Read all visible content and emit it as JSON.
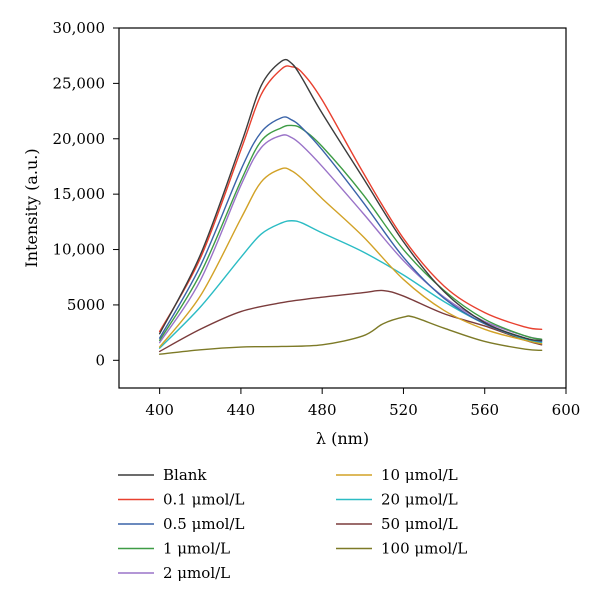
{
  "chart_data": {
    "type": "line",
    "xlabel": "λ (nm)",
    "ylabel": "Intensity (a.u.)",
    "xlim": [
      380,
      600
    ],
    "ylim": [
      -2500,
      30000
    ],
    "xticks": [
      400,
      440,
      480,
      520,
      560,
      600
    ],
    "xtick_labels": [
      "400",
      "440",
      "480",
      "520",
      "560",
      "600"
    ],
    "yticks": [
      0,
      5000,
      10000,
      15000,
      20000,
      25000,
      30000
    ],
    "ytick_labels": [
      "0",
      "5000",
      "10,000",
      "15,000",
      "20,000",
      "25,000",
      "30,000"
    ],
    "grid": false,
    "legend_position": "bottom",
    "series": [
      {
        "name": "Blank",
        "color": "#3c3c3c",
        "points": [
          [
            400,
            2400
          ],
          [
            420,
            9500
          ],
          [
            440,
            19500
          ],
          [
            450,
            24800
          ],
          [
            460,
            27000
          ],
          [
            465,
            26800
          ],
          [
            470,
            25500
          ],
          [
            480,
            22300
          ],
          [
            500,
            16500
          ],
          [
            520,
            10700
          ],
          [
            540,
            6200
          ],
          [
            560,
            3400
          ],
          [
            580,
            2000
          ],
          [
            588,
            1800
          ]
        ]
      },
      {
        "name": "0.1 μmol/L",
        "color": "#e8402f",
        "points": [
          [
            400,
            2600
          ],
          [
            420,
            9200
          ],
          [
            440,
            19000
          ],
          [
            450,
            24000
          ],
          [
            460,
            26300
          ],
          [
            465,
            26500
          ],
          [
            470,
            26000
          ],
          [
            480,
            23500
          ],
          [
            500,
            17000
          ],
          [
            520,
            11000
          ],
          [
            540,
            6700
          ],
          [
            560,
            4300
          ],
          [
            580,
            3000
          ],
          [
            588,
            2800
          ]
        ]
      },
      {
        "name": "0.5 μmol/L",
        "color": "#3a63a8",
        "points": [
          [
            400,
            2000
          ],
          [
            420,
            8500
          ],
          [
            440,
            17200
          ],
          [
            450,
            20600
          ],
          [
            460,
            21900
          ],
          [
            465,
            21700
          ],
          [
            470,
            21000
          ],
          [
            480,
            19000
          ],
          [
            500,
            14300
          ],
          [
            520,
            9300
          ],
          [
            540,
            5600
          ],
          [
            560,
            3300
          ],
          [
            580,
            2000
          ],
          [
            588,
            1700
          ]
        ]
      },
      {
        "name": "1 μmol/L",
        "color": "#3e9c45",
        "points": [
          [
            400,
            1800
          ],
          [
            420,
            7800
          ],
          [
            440,
            16200
          ],
          [
            450,
            19800
          ],
          [
            460,
            21000
          ],
          [
            465,
            21200
          ],
          [
            470,
            20900
          ],
          [
            480,
            19300
          ],
          [
            500,
            15000
          ],
          [
            520,
            10000
          ],
          [
            540,
            6300
          ],
          [
            560,
            3700
          ],
          [
            580,
            2200
          ],
          [
            588,
            1900
          ]
        ]
      },
      {
        "name": "2 μmol/L",
        "color": "#9a73c8",
        "points": [
          [
            400,
            1600
          ],
          [
            420,
            7200
          ],
          [
            440,
            15800
          ],
          [
            450,
            19200
          ],
          [
            460,
            20300
          ],
          [
            465,
            20100
          ],
          [
            470,
            19400
          ],
          [
            480,
            17500
          ],
          [
            500,
            13300
          ],
          [
            520,
            9000
          ],
          [
            540,
            5700
          ],
          [
            560,
            3500
          ],
          [
            580,
            2200
          ],
          [
            588,
            1900
          ]
        ]
      },
      {
        "name": "10 μmol/L",
        "color": "#d2a227",
        "points": [
          [
            400,
            1200
          ],
          [
            420,
            5800
          ],
          [
            440,
            12800
          ],
          [
            450,
            16100
          ],
          [
            460,
            17300
          ],
          [
            465,
            17100
          ],
          [
            470,
            16400
          ],
          [
            480,
            14600
          ],
          [
            500,
            11200
          ],
          [
            520,
            7300
          ],
          [
            540,
            4500
          ],
          [
            560,
            2800
          ],
          [
            580,
            1800
          ],
          [
            588,
            1500
          ]
        ]
      },
      {
        "name": "20 μmol/L",
        "color": "#2bbcc4",
        "points": [
          [
            400,
            1100
          ],
          [
            420,
            4800
          ],
          [
            440,
            9300
          ],
          [
            450,
            11400
          ],
          [
            460,
            12400
          ],
          [
            465,
            12600
          ],
          [
            470,
            12400
          ],
          [
            480,
            11500
          ],
          [
            500,
            9800
          ],
          [
            520,
            7700
          ],
          [
            540,
            5300
          ],
          [
            560,
            3300
          ],
          [
            580,
            1900
          ],
          [
            588,
            1600
          ]
        ]
      },
      {
        "name": "50 μmol/L",
        "color": "#7b3c3c",
        "points": [
          [
            400,
            800
          ],
          [
            420,
            2800
          ],
          [
            440,
            4400
          ],
          [
            460,
            5200
          ],
          [
            480,
            5700
          ],
          [
            500,
            6100
          ],
          [
            510,
            6300
          ],
          [
            520,
            5800
          ],
          [
            540,
            4200
          ],
          [
            560,
            3100
          ],
          [
            580,
            1800
          ],
          [
            588,
            1400
          ]
        ]
      },
      {
        "name": "100 μmol/L",
        "color": "#7d7a27",
        "points": [
          [
            400,
            550
          ],
          [
            420,
            950
          ],
          [
            440,
            1200
          ],
          [
            460,
            1250
          ],
          [
            480,
            1400
          ],
          [
            500,
            2200
          ],
          [
            510,
            3300
          ],
          [
            520,
            3900
          ],
          [
            525,
            3900
          ],
          [
            540,
            2900
          ],
          [
            560,
            1700
          ],
          [
            580,
            1000
          ],
          [
            588,
            900
          ]
        ]
      }
    ]
  }
}
